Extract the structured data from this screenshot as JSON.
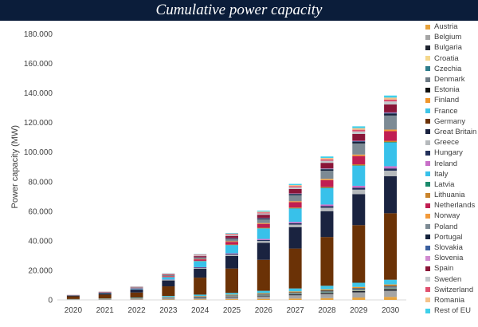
{
  "chart_data": {
    "type": "bar",
    "stacked": true,
    "title": "Cumulative power capacity",
    "ylabel": "Power capacity (MW)",
    "xlabel": "",
    "ylim": [
      0,
      180000
    ],
    "yticks": [
      "0",
      "20.000",
      "40.000",
      "60.000",
      "80.000",
      "100.000",
      "120.000",
      "140.000",
      "160.000",
      "180.000"
    ],
    "categories": [
      "2020",
      "2021",
      "2022",
      "2023",
      "2024",
      "2025",
      "2026",
      "2027",
      "2028",
      "2029",
      "2030"
    ],
    "grid": false,
    "legend_position": "right",
    "series": [
      {
        "name": "Austria",
        "color": "#e8a33d",
        "values": [
          60,
          80,
          120,
          250,
          350,
          500,
          700,
          900,
          1200,
          1600,
          2000
        ]
      },
      {
        "name": "Belgium",
        "color": "#a5a5a5",
        "values": [
          200,
          300,
          400,
          800,
          1000,
          1300,
          1700,
          2200,
          2800,
          3500,
          4200
        ]
      },
      {
        "name": "Bulgaria",
        "color": "#1f2430",
        "values": [
          50,
          80,
          120,
          200,
          300,
          400,
          500,
          650,
          800,
          1000,
          1200
        ]
      },
      {
        "name": "Croatia",
        "color": "#f4d78c",
        "values": [
          10,
          20,
          40,
          60,
          80,
          120,
          150,
          200,
          250,
          300,
          350
        ]
      },
      {
        "name": "Czechia",
        "color": "#2e7d8c",
        "values": [
          20,
          30,
          60,
          100,
          150,
          200,
          250,
          300,
          350,
          400,
          450
        ]
      },
      {
        "name": "Denmark",
        "color": "#6e7b85",
        "values": [
          100,
          150,
          200,
          300,
          400,
          500,
          600,
          700,
          800,
          900,
          1000
        ]
      },
      {
        "name": "Estonia",
        "color": "#101010",
        "values": [
          10,
          20,
          30,
          50,
          80,
          100,
          150,
          200,
          250,
          300,
          350
        ]
      },
      {
        "name": "Finland",
        "color": "#f0962b",
        "values": [
          50,
          80,
          120,
          200,
          300,
          400,
          500,
          600,
          700,
          800,
          900
        ]
      },
      {
        "name": "France",
        "color": "#3fc6e8",
        "values": [
          100,
          200,
          400,
          700,
          900,
          1200,
          1600,
          2000,
          2400,
          2800,
          3200
        ]
      },
      {
        "name": "Germany",
        "color": "#6b3206",
        "values": [
          1800,
          2600,
          3500,
          6500,
          11500,
          16500,
          21000,
          27000,
          33000,
          39000,
          45000
        ]
      },
      {
        "name": "Great Britain",
        "color": "#1a2340",
        "values": [
          500,
          1000,
          2000,
          4000,
          6000,
          8500,
          11500,
          14500,
          17500,
          21000,
          25000
        ]
      },
      {
        "name": "Greece",
        "color": "#b5b9bc",
        "values": [
          20,
          50,
          100,
          300,
          500,
          800,
          1200,
          1700,
          2300,
          3000,
          3800
        ]
      },
      {
        "name": "Hungary",
        "color": "#22305a",
        "values": [
          20,
          40,
          80,
          150,
          300,
          500,
          700,
          900,
          1100,
          1300,
          1500
        ]
      },
      {
        "name": "Ireland",
        "color": "#c86fc8",
        "values": [
          30,
          60,
          100,
          200,
          300,
          500,
          700,
          900,
          1100,
          1300,
          1500
        ]
      },
      {
        "name": "Italy",
        "color": "#38c1ea",
        "values": [
          100,
          200,
          500,
          1500,
          4000,
          5500,
          7000,
          9000,
          11000,
          13500,
          16000
        ]
      },
      {
        "name": "Latvia",
        "color": "#1b8a6b",
        "values": [
          10,
          20,
          40,
          60,
          100,
          150,
          200,
          250,
          300,
          350,
          400
        ]
      },
      {
        "name": "Lithuania",
        "color": "#c9842c",
        "values": [
          20,
          40,
          60,
          100,
          200,
          300,
          400,
          500,
          600,
          700,
          800
        ]
      },
      {
        "name": "Netherlands",
        "color": "#c01e52",
        "values": [
          60,
          150,
          300,
          600,
          1000,
          1800,
          2600,
          3600,
          4600,
          5600,
          6500
        ]
      },
      {
        "name": "Norway",
        "color": "#f29a3a",
        "values": [
          20,
          40,
          80,
          150,
          250,
          400,
          550,
          700,
          850,
          1000,
          1100
        ]
      },
      {
        "name": "Poland",
        "color": "#7c8a94",
        "values": [
          30,
          60,
          120,
          300,
          700,
          1500,
          2500,
          4000,
          5500,
          7500,
          9500
        ]
      },
      {
        "name": "Portugal",
        "color": "#14223c",
        "values": [
          20,
          40,
          80,
          150,
          250,
          400,
          600,
          800,
          1000,
          1200,
          1400
        ]
      },
      {
        "name": "Slovakia",
        "color": "#3a5f9e",
        "values": [
          10,
          20,
          40,
          60,
          100,
          150,
          200,
          250,
          300,
          350,
          400
        ]
      },
      {
        "name": "Slovenia",
        "color": "#d08ad0",
        "values": [
          10,
          20,
          30,
          50,
          80,
          100,
          150,
          200,
          250,
          300,
          350
        ]
      },
      {
        "name": "Spain",
        "color": "#8a1538",
        "values": [
          50,
          100,
          200,
          400,
          800,
          1500,
          2200,
          3000,
          3800,
          4600,
          5400
        ]
      },
      {
        "name": "Sweden",
        "color": "#c3c8cc",
        "values": [
          50,
          100,
          200,
          300,
          500,
          700,
          900,
          1100,
          1400,
          1700,
          2000
        ]
      },
      {
        "name": "Switzerland",
        "color": "#e0506e",
        "values": [
          50,
          100,
          150,
          250,
          400,
          550,
          700,
          850,
          1000,
          1150,
          1300
        ]
      },
      {
        "name": "Romania",
        "color": "#f5c28a",
        "values": [
          10,
          20,
          40,
          80,
          150,
          300,
          500,
          700,
          900,
          1100,
          1300
        ]
      },
      {
        "name": "Rest of EU",
        "color": "#3fd0ea",
        "values": [
          20,
          40,
          80,
          150,
          250,
          400,
          600,
          800,
          1000,
          1200,
          1400
        ]
      }
    ]
  }
}
